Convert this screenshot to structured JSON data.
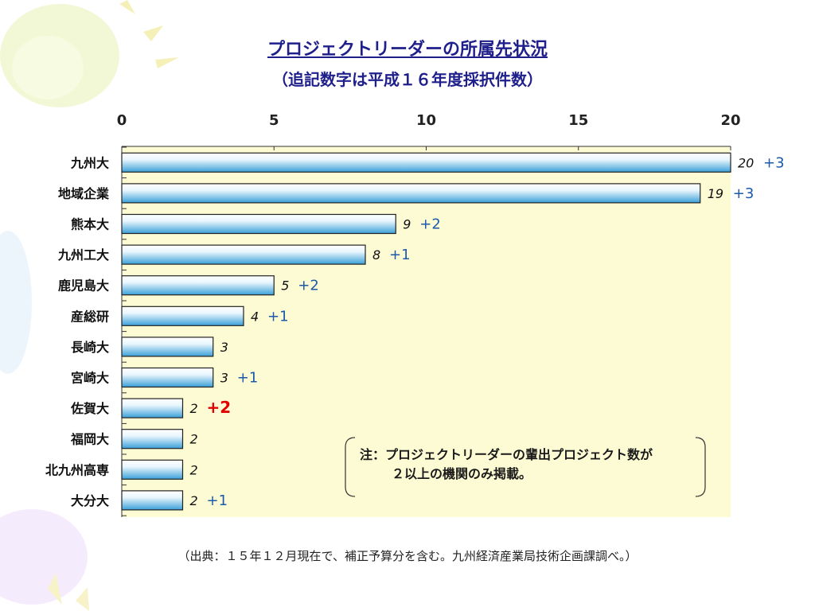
{
  "slide": {
    "title": "プロジェクトリーダーの所属先状況",
    "subtitle": "（追記数字は平成１６年度採択件数）",
    "note_line1": "注：プロジェクトリーダーの輩出プロジェクト数が",
    "note_line2": "２以上の機関のみ掲載。",
    "source": "（出典：１５年１２月現在で、補正予算分を含む。九州経済産業局技術企画課調べ。）"
  },
  "colors": {
    "title": "#1f1f8c",
    "plot_background": "#fdfbd4",
    "bar_light": "#e8f6fd",
    "bar_dark": "#3aa0d8",
    "added_label": "#1a5aa8",
    "added_highlight": "#e00000"
  },
  "chart_data": {
    "type": "bar",
    "orientation": "horizontal",
    "title": "プロジェクトリーダーの所属先状況",
    "subtitle": "（追記数字は平成１６年度採択件数）",
    "xlim": [
      0,
      20
    ],
    "x_ticks": [
      "0",
      "5",
      "10",
      "15",
      "20"
    ],
    "x_tick_values": [
      0,
      5,
      10,
      15,
      20
    ],
    "categories": [
      "九州大",
      "地域企業",
      "熊本大",
      "九州工大",
      "鹿児島大",
      "産総研",
      "長崎大",
      "宮崎大",
      "佐賀大",
      "福岡大",
      "北九州高専",
      "大分大"
    ],
    "values": [
      20,
      19,
      9,
      8,
      5,
      4,
      3,
      3,
      2,
      2,
      2,
      2
    ],
    "value_labels": [
      "20",
      "19",
      "9",
      "8",
      "5",
      "4",
      "3",
      "3",
      "2",
      "2",
      "2",
      "2"
    ],
    "added_h16": [
      "+3",
      "+3",
      "+2",
      "+1",
      "+2",
      "+1",
      "",
      "+1",
      "+2",
      "",
      "",
      "+1"
    ],
    "highlight_index": 8,
    "grid": false
  }
}
